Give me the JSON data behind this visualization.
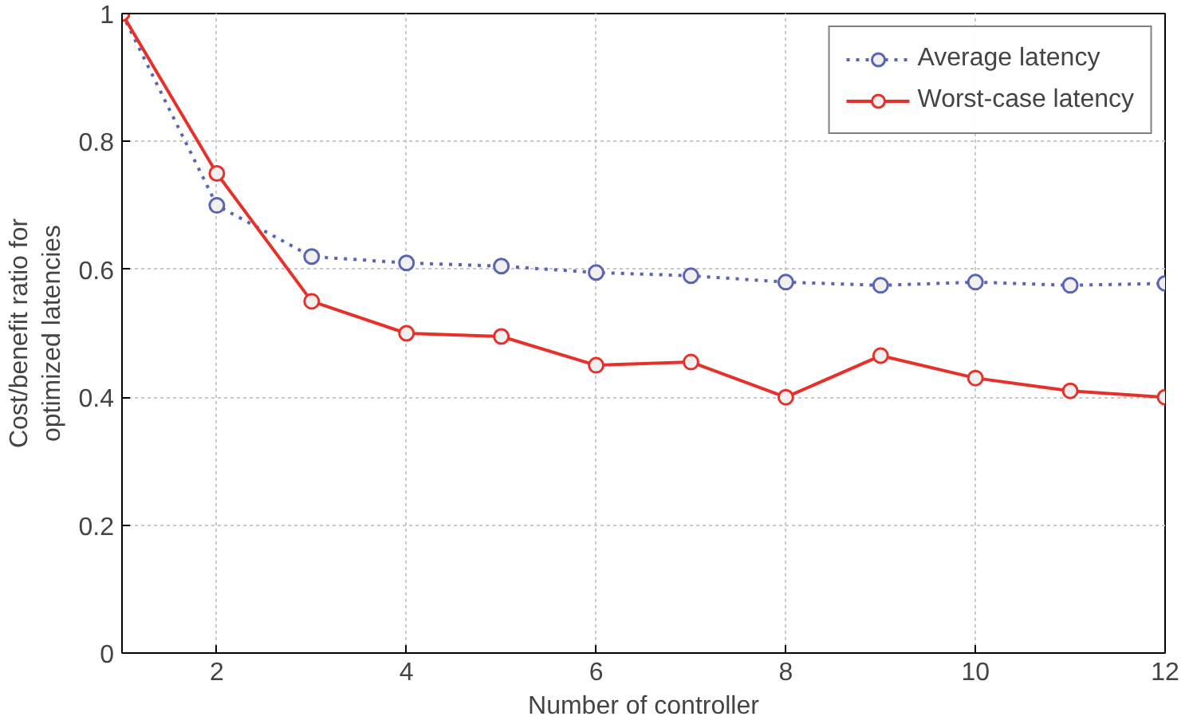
{
  "chart_data": {
    "type": "line",
    "xlabel": "Number of controller",
    "ylabel": "Cost/benefit ratio for\noptimized latencies",
    "x": [
      1,
      2,
      3,
      4,
      5,
      6,
      7,
      8,
      9,
      10,
      11,
      12
    ],
    "series": [
      {
        "name": "Average latency",
        "color": "#5a64b4",
        "line_style": "dotted",
        "values": [
          1.0,
          0.7,
          0.62,
          0.61,
          0.605,
          0.595,
          0.59,
          0.58,
          0.575,
          0.58,
          0.575,
          0.578
        ]
      },
      {
        "name": "Worst-case latency",
        "color": "#e8302a",
        "line_style": "solid",
        "values": [
          1.0,
          0.75,
          0.55,
          0.5,
          0.495,
          0.45,
          0.455,
          0.4,
          0.465,
          0.43,
          0.41,
          0.4
        ]
      }
    ],
    "xlim": [
      1,
      12
    ],
    "xticks": [
      2,
      4,
      6,
      8,
      10,
      12
    ],
    "ylim": [
      0,
      1
    ],
    "yticks": [
      0,
      0.2,
      0.4,
      0.6,
      0.8,
      1
    ],
    "grid": true,
    "legend": "top right",
    "marker": "circle"
  }
}
